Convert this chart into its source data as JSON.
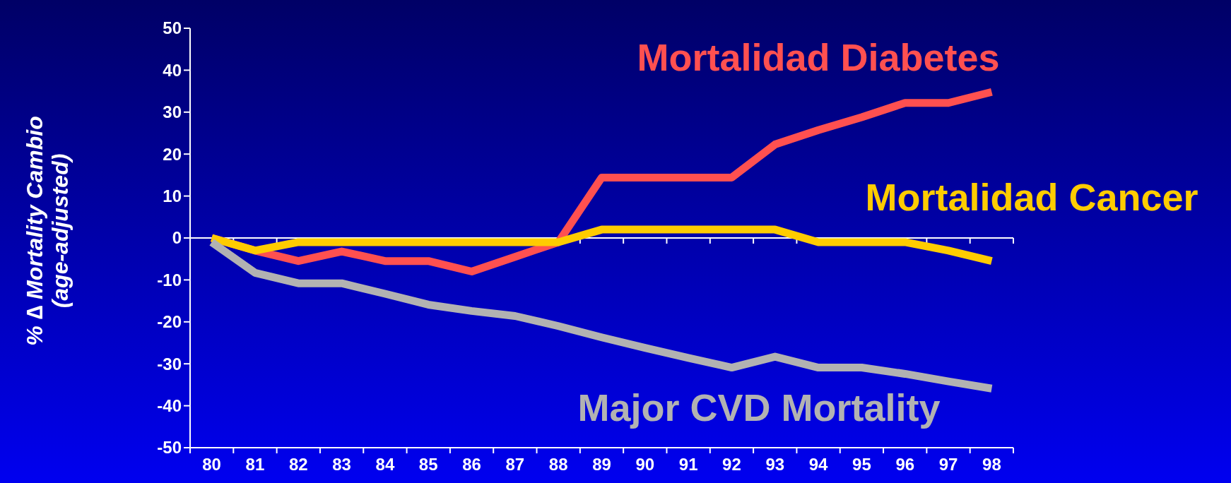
{
  "chart_data": {
    "type": "line",
    "ylabel": "% ∆ Mortality Cambio\n(age-adjusted)",
    "categories": [
      "80",
      "81",
      "82",
      "83",
      "84",
      "85",
      "86",
      "87",
      "88",
      "89",
      "90",
      "91",
      "92",
      "93",
      "94",
      "95",
      "96",
      "97",
      "98"
    ],
    "ylim": [
      -50,
      50
    ],
    "yticks": [
      -50,
      -40,
      -30,
      -20,
      -10,
      0,
      10,
      20,
      30,
      40,
      50
    ],
    "grid": false,
    "marker": "none",
    "ref_lines": [
      {
        "axis": "y",
        "value": 0,
        "color": "#ffffff"
      }
    ],
    "series": [
      {
        "name": "Mortalidad Diabetes",
        "color": "#ff5050",
        "values": [
          0,
          -3,
          -5.5,
          -3.2,
          -5.5,
          -5.5,
          -8,
          -4.5,
          -1,
          14.4,
          14.4,
          14.4,
          14.4,
          22.3,
          25.7,
          28.8,
          32.2,
          32.2,
          34.8
        ]
      },
      {
        "name": "Mortalidad Cancer",
        "color": "#ffcc00",
        "values": [
          0,
          -3,
          -1,
          -1,
          -1,
          -1,
          -1,
          -1,
          -1,
          2,
          2,
          2,
          2,
          2,
          -1,
          -1,
          -1,
          -3,
          -5.5
        ]
      },
      {
        "name": "Major CVD Mortality",
        "color": "#b2b2b2",
        "values": [
          -1,
          -8.3,
          -10.8,
          -10.8,
          -13.3,
          -15.9,
          -17.4,
          -18.6,
          -21,
          -23.7,
          -26.2,
          -28.6,
          -30.9,
          -28.3,
          -30.9,
          -30.9,
          -32.4,
          -34.2,
          -35.9
        ]
      }
    ]
  }
}
